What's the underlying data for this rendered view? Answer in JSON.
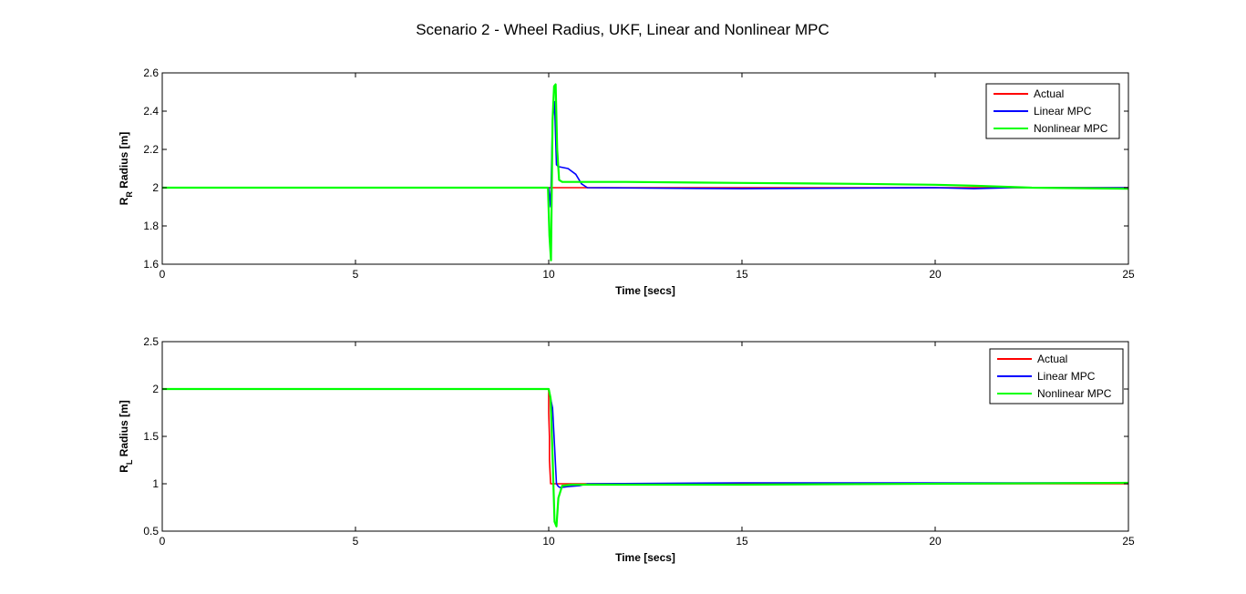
{
  "figure_title": "Scenario 2 - Wheel Radius, UKF, Linear and Nonlinear MPC",
  "colors": {
    "actual": "#ff0000",
    "linear": "#0000ff",
    "nonlinear": "#00ff00",
    "axes": "#000000"
  },
  "chart_data": [
    {
      "type": "line",
      "ylabel_main": "R",
      "ylabel_sub": "R",
      "ylabel_rest": " Radius [m]",
      "xlabel": "Time [secs]",
      "xlim": [
        0,
        25
      ],
      "ylim": [
        1.6,
        2.6
      ],
      "xticks": [
        0,
        5,
        10,
        15,
        20,
        25
      ],
      "yticks": [
        1.6,
        1.8,
        2,
        2.2,
        2.4,
        2.6
      ],
      "xtick_labels": [
        "0",
        "5",
        "10",
        "15",
        "20",
        "25"
      ],
      "ytick_labels": [
        "1.6",
        "1.8",
        "2",
        "2.2",
        "2.4",
        "2.6"
      ],
      "legend_position": "top-right",
      "series": [
        {
          "name": "Actual",
          "color": "#ff0000",
          "x": [
            0,
            10.0,
            10.0,
            25
          ],
          "y": [
            2.0,
            2.0,
            2.0,
            2.0
          ]
        },
        {
          "name": "Linear MPC",
          "color": "#0000ff",
          "x": [
            0,
            10.0,
            10.05,
            10.1,
            10.15,
            10.2,
            10.25,
            10.5,
            10.7,
            10.85,
            11.0,
            15,
            20,
            21,
            22,
            25
          ],
          "y": [
            2.0,
            2.0,
            1.9,
            2.35,
            2.45,
            2.12,
            2.11,
            2.1,
            2.07,
            2.02,
            2.0,
            1.995,
            2.0,
            1.995,
            2.0,
            2.0
          ]
        },
        {
          "name": "Nonlinear MPC",
          "color": "#00ff00",
          "x": [
            0,
            9.98,
            10.02,
            10.06,
            10.1,
            10.14,
            10.18,
            10.22,
            10.27,
            10.35,
            10.6,
            12,
            15,
            18,
            20,
            21,
            22.5,
            25
          ],
          "y": [
            2.0,
            2.0,
            1.75,
            1.62,
            2.35,
            2.53,
            2.54,
            2.2,
            2.04,
            2.03,
            2.03,
            2.03,
            2.025,
            2.02,
            2.015,
            2.01,
            2.0,
            1.995
          ]
        }
      ],
      "legend": [
        "Actual",
        "Linear MPC",
        "Nonlinear MPC"
      ]
    },
    {
      "type": "line",
      "ylabel_main": "R",
      "ylabel_sub": "L",
      "ylabel_rest": " Radius [m]",
      "xlabel": "Time [secs]",
      "xlim": [
        0,
        25
      ],
      "ylim": [
        0.5,
        2.5
      ],
      "xticks": [
        0,
        5,
        10,
        15,
        20,
        25
      ],
      "yticks": [
        0.5,
        1,
        1.5,
        2,
        2.5
      ],
      "xtick_labels": [
        "0",
        "5",
        "10",
        "15",
        "20",
        "25"
      ],
      "ytick_labels": [
        "0.5",
        "1",
        "1.5",
        "2",
        "2.5"
      ],
      "legend_position": "top-right",
      "series": [
        {
          "name": "Actual",
          "color": "#ff0000",
          "x": [
            0,
            10.0,
            10.0,
            10.02,
            10.02,
            10.05,
            10.05,
            25
          ],
          "y": [
            2.0,
            2.0,
            1.75,
            1.5,
            1.25,
            1.0,
            1.0,
            1.0
          ]
        },
        {
          "name": "Linear MPC",
          "color": "#0000ff",
          "x": [
            0,
            10.0,
            10.1,
            10.15,
            10.2,
            10.25,
            10.3,
            10.5,
            10.8,
            11.0,
            15,
            20,
            25
          ],
          "y": [
            2.0,
            2.0,
            1.8,
            1.4,
            1.0,
            0.97,
            0.96,
            0.97,
            0.98,
            1.0,
            1.01,
            1.01,
            1.01
          ]
        },
        {
          "name": "Nonlinear MPC",
          "color": "#00ff00",
          "x": [
            0,
            10.0,
            10.05,
            10.1,
            10.15,
            10.2,
            10.25,
            10.35,
            10.6,
            12,
            15,
            20,
            25
          ],
          "y": [
            2.0,
            2.0,
            1.9,
            1.3,
            0.6,
            0.55,
            0.85,
            0.98,
            0.99,
            0.99,
            0.99,
            1.0,
            1.01
          ]
        }
      ],
      "legend": [
        "Actual",
        "Linear MPC",
        "Nonlinear MPC"
      ]
    }
  ]
}
